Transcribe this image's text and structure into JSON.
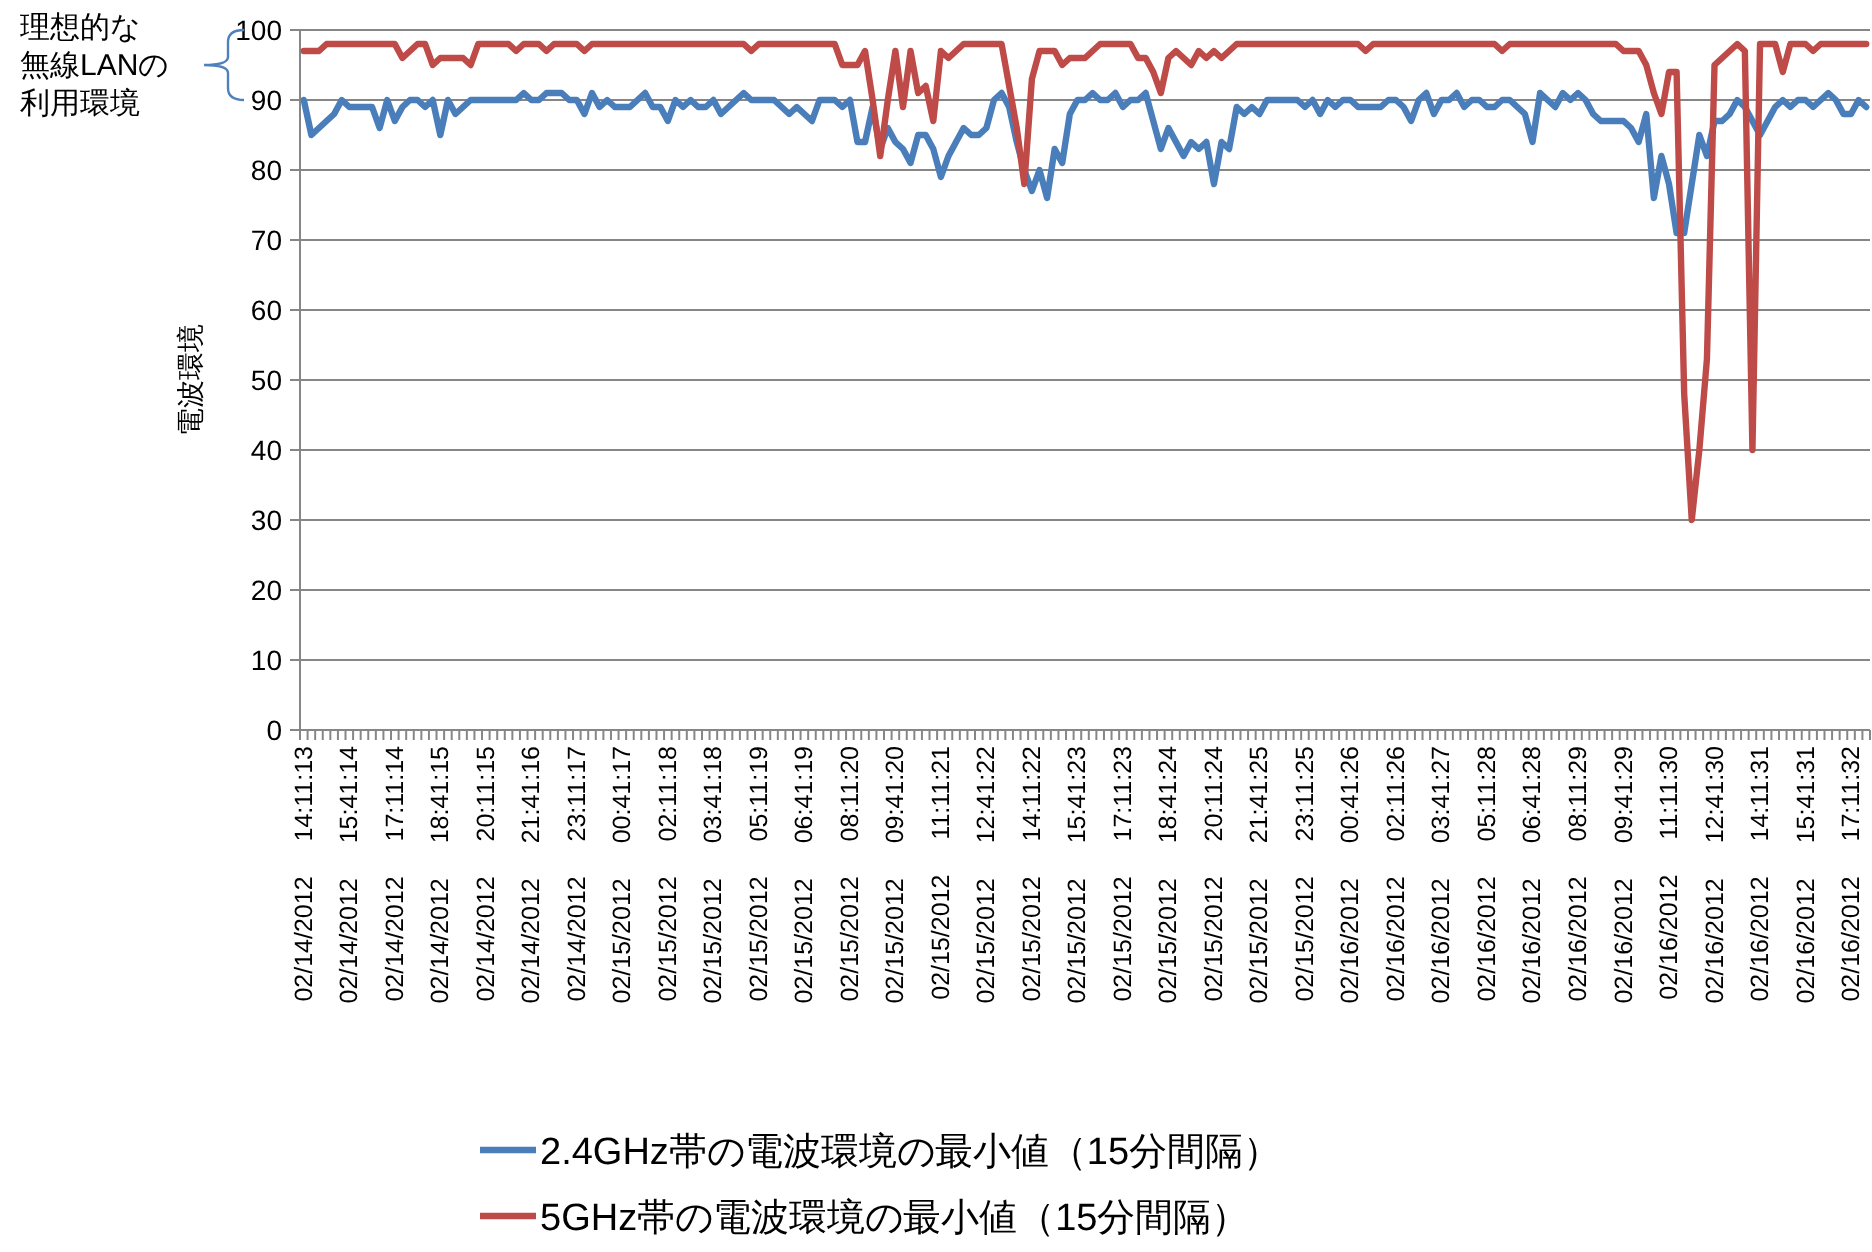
{
  "chart_data": {
    "type": "line",
    "ylabel": "電波環境",
    "ylim": [
      0,
      100
    ],
    "yticks": [
      0,
      10,
      20,
      30,
      40,
      50,
      60,
      70,
      80,
      90,
      100
    ],
    "grid": "y",
    "legend": "bottom",
    "annotations": [
      "理想的な無線LANの利用環境"
    ],
    "categories": [
      "02/14/2012 14:11:13",
      null,
      null,
      null,
      null,
      null,
      "02/14/2012 15:41:14",
      null,
      null,
      null,
      null,
      null,
      "02/14/2012 17:11:14",
      null,
      null,
      null,
      null,
      null,
      "02/14/2012 18:41:15",
      null,
      null,
      null,
      null,
      null,
      "02/14/2012 20:11:15",
      null,
      null,
      null,
      null,
      null,
      "02/14/2012 21:41:16",
      null,
      null,
      null,
      null,
      null,
      "02/14/2012 23:11:17",
      null,
      null,
      null,
      null,
      null,
      "02/15/2012 00:41:17",
      null,
      null,
      null,
      null,
      null,
      "02/15/2012 02:11:18",
      null,
      null,
      null,
      null,
      null,
      "02/15/2012 03:41:18",
      null,
      null,
      null,
      null,
      null,
      "02/15/2012 05:11:19",
      null,
      null,
      null,
      null,
      null,
      "02/15/2012 06:41:19",
      null,
      null,
      null,
      null,
      null,
      "02/15/2012 08:11:20",
      null,
      null,
      null,
      null,
      null,
      "02/15/2012 09:41:20",
      null,
      null,
      null,
      null,
      null,
      "02/15/2012 11:11:21",
      null,
      null,
      null,
      null,
      null,
      "02/15/2012 12:41:22",
      null,
      null,
      null,
      null,
      null,
      "02/15/2012 14:11:22",
      null,
      null,
      null,
      null,
      null,
      "02/15/2012 15:41:23",
      null,
      null,
      null,
      null,
      null,
      "02/15/2012 17:11:23",
      null,
      null,
      null,
      null,
      null,
      "02/15/2012 18:41:24",
      null,
      null,
      null,
      null,
      null,
      "02/15/2012 20:11:24",
      null,
      null,
      null,
      null,
      null,
      "02/15/2012 21:41:25",
      null,
      null,
      null,
      null,
      null,
      "02/15/2012 23:11:25",
      null,
      null,
      null,
      null,
      null,
      "02/16/2012 00:41:26",
      null,
      null,
      null,
      null,
      null,
      "02/16/2012 02:11:26",
      null,
      null,
      null,
      null,
      null,
      "02/16/2012 03:41:27",
      null,
      null,
      null,
      null,
      null,
      "02/16/2012 05:11:28",
      null,
      null,
      null,
      null,
      null,
      "02/16/2012 06:41:28",
      null,
      null,
      null,
      null,
      null,
      "02/16/2012 08:11:29",
      null,
      null,
      null,
      null,
      null,
      "02/16/2012 09:41:29",
      null,
      null,
      null,
      null,
      null,
      "02/16/2012 11:11:30",
      null,
      null,
      null,
      null,
      null,
      "02/16/2012 12:41:30",
      null,
      null,
      null,
      null,
      null,
      "02/16/2012 14:11:31",
      null,
      null,
      null,
      null,
      null,
      "02/16/2012 15:41:31",
      null,
      null,
      null,
      null,
      null,
      "02/16/2012 17:11:32",
      null,
      null
    ],
    "series": [
      {
        "name": "2.4GHz帯の電波環境の最小値（15分間隔）",
        "color": "#4a7ebb",
        "values": [
          90,
          85,
          86,
          87,
          88,
          90,
          89,
          89,
          89,
          89,
          86,
          90,
          87,
          89,
          90,
          90,
          89,
          90,
          85,
          90,
          88,
          89,
          90,
          90,
          90,
          90,
          90,
          90,
          90,
          91,
          90,
          90,
          91,
          91,
          91,
          90,
          90,
          88,
          91,
          89,
          90,
          89,
          89,
          89,
          90,
          91,
          89,
          89,
          87,
          90,
          89,
          90,
          89,
          89,
          90,
          88,
          89,
          90,
          91,
          90,
          90,
          90,
          90,
          89,
          88,
          89,
          88,
          87,
          90,
          90,
          90,
          89,
          90,
          84,
          84,
          89,
          83,
          86,
          84,
          83,
          81,
          85,
          85,
          83,
          79,
          82,
          84,
          86,
          85,
          85,
          86,
          90,
          91,
          89,
          84,
          80,
          77,
          80,
          76,
          83,
          81,
          88,
          90,
          90,
          91,
          90,
          90,
          91,
          89,
          90,
          90,
          91,
          87,
          83,
          86,
          84,
          82,
          84,
          83,
          84,
          78,
          84,
          83,
          89,
          88,
          89,
          88,
          90,
          90,
          90,
          90,
          90,
          89,
          90,
          88,
          90,
          89,
          90,
          90,
          89,
          89,
          89,
          89,
          90,
          90,
          89,
          87,
          90,
          91,
          88,
          90,
          90,
          91,
          89,
          90,
          90,
          89,
          89,
          90,
          90,
          89,
          88,
          84,
          91,
          90,
          89,
          91,
          90,
          91,
          90,
          88,
          87,
          87,
          87,
          87,
          86,
          84,
          88,
          76,
          82,
          78,
          71,
          71,
          78,
          85,
          82,
          87,
          87,
          88,
          90,
          89,
          87,
          85,
          87,
          89,
          90,
          89,
          90,
          90,
          89,
          90,
          91,
          90,
          88,
          88,
          90,
          89
        ]
      },
      {
        "name": "5GHz帯の電波環境の最小値（15分間隔）",
        "color": "#be4b48",
        "values": [
          97,
          97,
          97,
          98,
          98,
          98,
          98,
          98,
          98,
          98,
          98,
          98,
          98,
          96,
          97,
          98,
          98,
          95,
          96,
          96,
          96,
          96,
          95,
          98,
          98,
          98,
          98,
          98,
          97,
          98,
          98,
          98,
          97,
          98,
          98,
          98,
          98,
          97,
          98,
          98,
          98,
          98,
          98,
          98,
          98,
          98,
          98,
          98,
          98,
          98,
          98,
          98,
          98,
          98,
          98,
          98,
          98,
          98,
          98,
          97,
          98,
          98,
          98,
          98,
          98,
          98,
          98,
          98,
          98,
          98,
          98,
          95,
          95,
          95,
          97,
          90,
          82,
          90,
          97,
          89,
          97,
          91,
          92,
          87,
          97,
          96,
          97,
          98,
          98,
          98,
          98,
          98,
          98,
          92,
          86,
          78,
          93,
          97,
          97,
          97,
          95,
          96,
          96,
          96,
          97,
          98,
          98,
          98,
          98,
          98,
          96,
          96,
          94,
          91,
          96,
          97,
          96,
          95,
          97,
          96,
          97,
          96,
          97,
          98,
          98,
          98,
          98,
          98,
          98,
          98,
          98,
          98,
          98,
          98,
          98,
          98,
          98,
          98,
          98,
          98,
          97,
          98,
          98,
          98,
          98,
          98,
          98,
          98,
          98,
          98,
          98,
          98,
          98,
          98,
          98,
          98,
          98,
          98,
          97,
          98,
          98,
          98,
          98,
          98,
          98,
          98,
          98,
          98,
          98,
          98,
          98,
          98,
          98,
          98,
          97,
          97,
          97,
          95,
          91,
          88,
          94,
          94,
          48,
          30,
          40,
          53,
          95,
          96,
          97,
          98,
          97,
          40,
          98,
          98,
          98,
          94,
          98,
          98,
          98,
          97,
          98,
          98,
          98,
          98,
          98,
          98,
          98
        ]
      }
    ]
  }
}
